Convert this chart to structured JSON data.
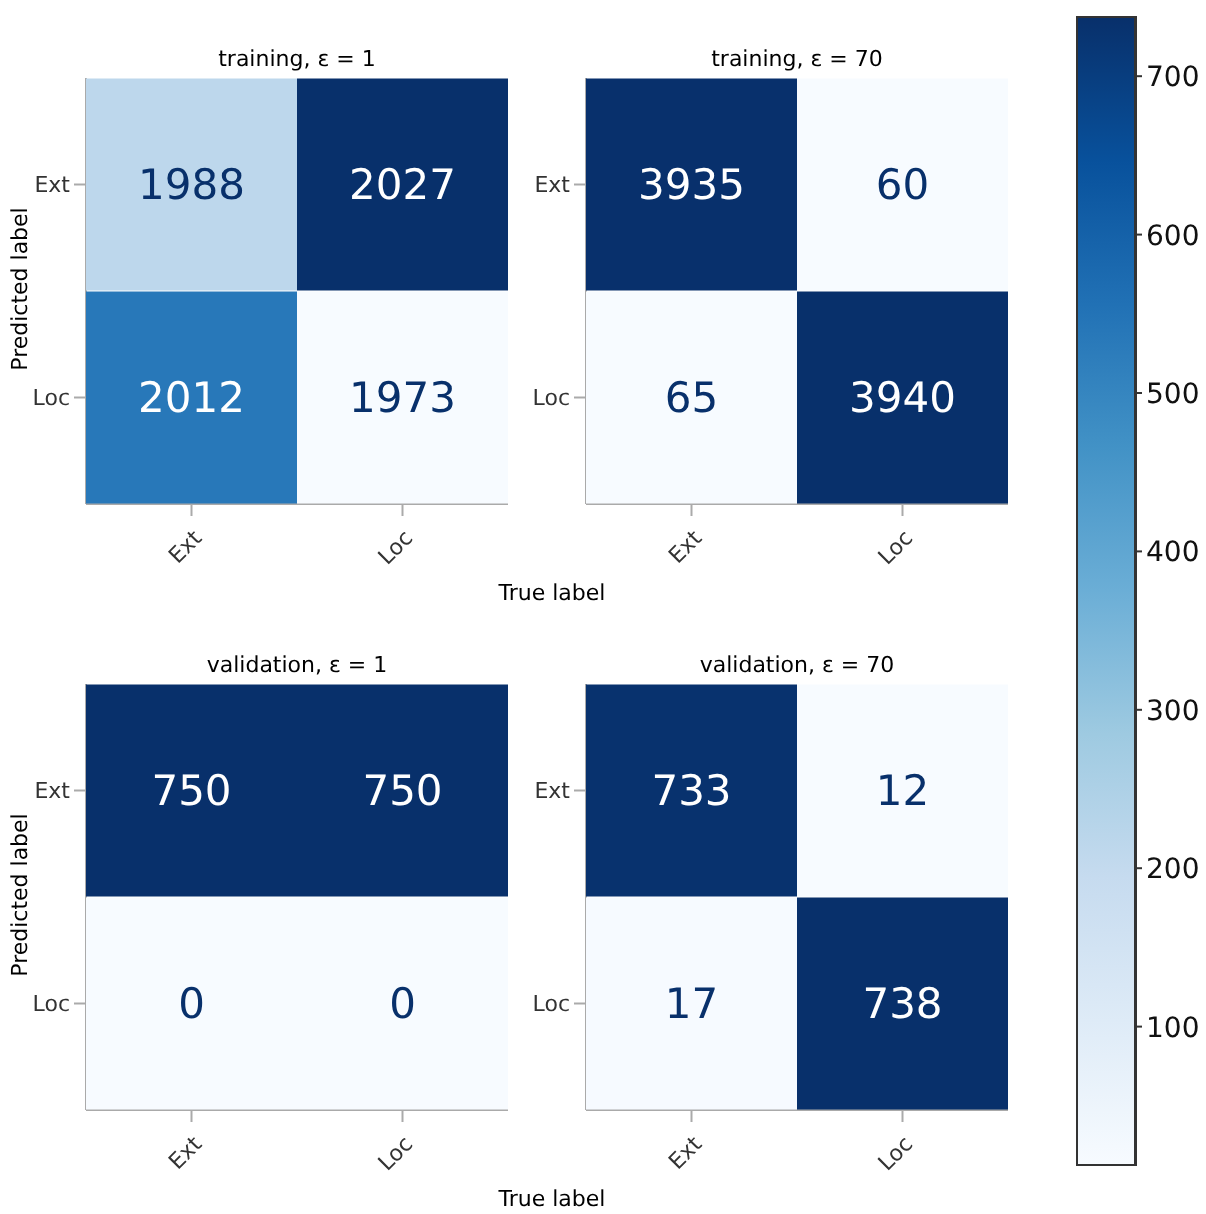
{
  "chart_data": [
    {
      "type": "heatmap",
      "title": "training, ε = 1",
      "ylabel": "Predicted label",
      "xlabel": "True label",
      "categories": [
        "Ext",
        "Loc"
      ],
      "y_categories": [
        "Ext",
        "Loc"
      ],
      "cells": [
        [
          1988,
          2027
        ],
        [
          2012,
          1973
        ]
      ],
      "data_labels": true
    },
    {
      "type": "heatmap",
      "title": "training, ε = 70",
      "categories": [
        "Ext",
        "Loc"
      ],
      "y_categories": [
        "Ext",
        "Loc"
      ],
      "cells": [
        [
          3935,
          60
        ],
        [
          65,
          3940
        ]
      ],
      "data_labels": true
    },
    {
      "type": "heatmap",
      "title": "validation, ε = 1",
      "ylabel": "Predicted label",
      "xlabel": "True label",
      "categories": [
        "Ext",
        "Loc"
      ],
      "y_categories": [
        "Ext",
        "Loc"
      ],
      "cells": [
        [
          750,
          750
        ],
        [
          0,
          0
        ]
      ],
      "data_labels": true
    },
    {
      "type": "heatmap",
      "title": "validation, ε = 70",
      "categories": [
        "Ext",
        "Loc"
      ],
      "y_categories": [
        "Ext",
        "Loc"
      ],
      "cells": [
        [
          733,
          12
        ],
        [
          17,
          738
        ]
      ],
      "data_labels": true,
      "clim": [
        12,
        738
      ],
      "cticks": [
        100,
        200,
        300,
        400,
        500,
        600,
        700
      ]
    }
  ]
}
